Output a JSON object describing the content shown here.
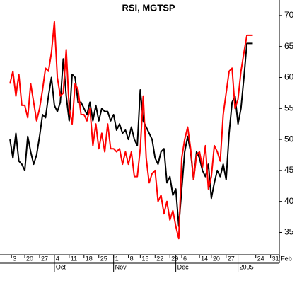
{
  "chart_data": {
    "type": "line",
    "title": "RSI, MGTSP",
    "x": [
      0,
      1,
      2,
      3,
      4,
      5,
      6,
      7,
      8,
      9,
      10,
      11,
      12,
      13,
      14,
      15,
      16,
      17,
      18,
      19,
      20,
      21,
      22,
      23,
      24,
      25,
      26,
      27,
      28,
      29,
      30,
      31,
      32,
      33,
      34,
      35,
      36,
      37,
      38,
      39,
      40,
      41,
      42,
      43,
      44,
      45,
      46,
      47,
      48,
      49,
      50,
      51,
      52,
      53,
      54,
      55,
      56,
      57,
      58,
      59,
      60,
      61,
      62,
      63,
      64,
      65,
      66,
      67,
      68,
      69,
      70,
      71,
      72,
      73,
      74,
      75,
      76,
      77,
      78,
      79,
      80,
      81,
      82
    ],
    "series": [
      {
        "name": null,
        "color": "#000000",
        "values": [
          50,
          47,
          51,
          46.5,
          46,
          45,
          50.5,
          48,
          46,
          47.5,
          50.5,
          54,
          53.5,
          57,
          60,
          55.5,
          54.5,
          56,
          63,
          57,
          53,
          60.5,
          60,
          56,
          56,
          55,
          54,
          56,
          53,
          55.5,
          53,
          55,
          54.5,
          54.5,
          53,
          54,
          51.5,
          52.5,
          51,
          51.5,
          50,
          52,
          50,
          49,
          58,
          53,
          52,
          51,
          50,
          47,
          46,
          48,
          48.5,
          43,
          44,
          41,
          42,
          36,
          42,
          48,
          50.5,
          48,
          43.5,
          48,
          47,
          45,
          44,
          46,
          40.5,
          43,
          45,
          44,
          46,
          43.5,
          51,
          56,
          57,
          52.5,
          55,
          60,
          65.5,
          65.5,
          65.5
        ]
      },
      {
        "name": null,
        "color": "#ff0000",
        "values": [
          59,
          61,
          57,
          60.5,
          55.5,
          55.5,
          53.5,
          59,
          56,
          53,
          55,
          58,
          61.5,
          61,
          64,
          69,
          60,
          57,
          57.5,
          64.5,
          55,
          52.5,
          59,
          58,
          54,
          54,
          53,
          55,
          49,
          52.5,
          48.5,
          51,
          48,
          52.5,
          48.5,
          48.5,
          48,
          48.5,
          46,
          48,
          46,
          48,
          44,
          44,
          48.5,
          57,
          47,
          43,
          44.5,
          45,
          40,
          41,
          38,
          40,
          37,
          38.5,
          36,
          34,
          47,
          50,
          52,
          48.5,
          43.5,
          47.5,
          48,
          45.5,
          49,
          42,
          44,
          49,
          48,
          46.5,
          54,
          57.5,
          61,
          61.5,
          55,
          56.5,
          61,
          64,
          66.8,
          66.8,
          66.8
        ]
      }
    ],
    "xlim": [
      -0.5,
      90
    ],
    "ylim": [
      31.4,
      72.5
    ],
    "yticks": [
      35,
      40,
      45,
      50,
      55,
      60,
      65,
      70
    ],
    "xticks": [
      {
        "value": 0.5,
        "label": "3"
      },
      {
        "value": 5,
        "label": "20"
      },
      {
        "value": 10,
        "label": "27"
      },
      {
        "value": 15,
        "label": "4"
      },
      {
        "value": 20,
        "label": "11"
      },
      {
        "value": 25,
        "label": "18"
      },
      {
        "value": 30,
        "label": "25"
      },
      {
        "value": 35,
        "label": "1"
      },
      {
        "value": 40,
        "label": "8"
      },
      {
        "value": 44,
        "label": "15"
      },
      {
        "value": 49,
        "label": "22"
      },
      {
        "value": 54,
        "label": "29"
      },
      {
        "value": 58,
        "label": "6"
      },
      {
        "value": 64,
        "label": "14"
      },
      {
        "value": 68,
        "label": "20"
      },
      {
        "value": 73,
        "label": "27"
      },
      {
        "value": 83,
        "label": "24"
      },
      {
        "value": 88,
        "label": "31"
      },
      {
        "value": 91,
        "label": "Feb"
      }
    ],
    "month_ticks": [
      {
        "value": 15,
        "label": "Oct"
      },
      {
        "value": 35,
        "label": "Nov"
      },
      {
        "value": 56,
        "label": "Dec"
      },
      {
        "value": 77,
        "label": "2005"
      }
    ]
  }
}
